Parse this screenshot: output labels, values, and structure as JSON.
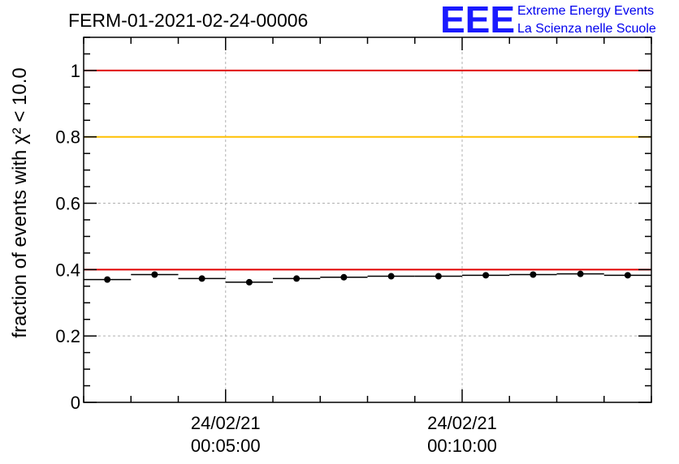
{
  "header": {
    "title": "FERM-01-2021-02-24-00006",
    "logo_text": "EEE",
    "logo_line1": "Extreme Energy Events",
    "logo_line2": "La Scienza nelle Scuole"
  },
  "colors": {
    "red": "#e00000",
    "orange": "#ffc000",
    "logo": "#1a1aff",
    "grid": "#b0b0b0"
  },
  "chart_data": {
    "type": "scatter",
    "title": "FERM-01-2021-02-24-00006",
    "ylabel": "fraction of events with χ² < 10.0",
    "ylim": [
      0,
      1.1
    ],
    "xlim_minutes": [
      2.0,
      14.0
    ],
    "ytick_values": [
      0,
      0.2,
      0.4,
      0.6,
      0.8,
      1
    ],
    "ytick_labels": [
      "0",
      "0.2",
      "0.4",
      "0.6",
      "0.8",
      "1"
    ],
    "xticks": [
      {
        "minute": 5,
        "date": "24/02/21",
        "time": "00:05:00"
      },
      {
        "minute": 10,
        "date": "24/02/21",
        "time": "00:10:00"
      }
    ],
    "grid": true,
    "reference_lines": [
      {
        "y": 1.0,
        "color": "#e00000"
      },
      {
        "y": 0.8,
        "color": "#ffc000"
      },
      {
        "y": 0.4,
        "color": "#e00000"
      }
    ],
    "points": [
      {
        "x": 2.5,
        "y": 0.37
      },
      {
        "x": 3.5,
        "y": 0.385
      },
      {
        "x": 4.5,
        "y": 0.373
      },
      {
        "x": 5.5,
        "y": 0.362
      },
      {
        "x": 6.5,
        "y": 0.373
      },
      {
        "x": 7.5,
        "y": 0.377
      },
      {
        "x": 8.5,
        "y": 0.38
      },
      {
        "x": 9.5,
        "y": 0.38
      },
      {
        "x": 10.5,
        "y": 0.383
      },
      {
        "x": 11.5,
        "y": 0.385
      },
      {
        "x": 12.5,
        "y": 0.387
      },
      {
        "x": 13.5,
        "y": 0.383
      }
    ],
    "x_error_half_minutes": 0.5
  }
}
